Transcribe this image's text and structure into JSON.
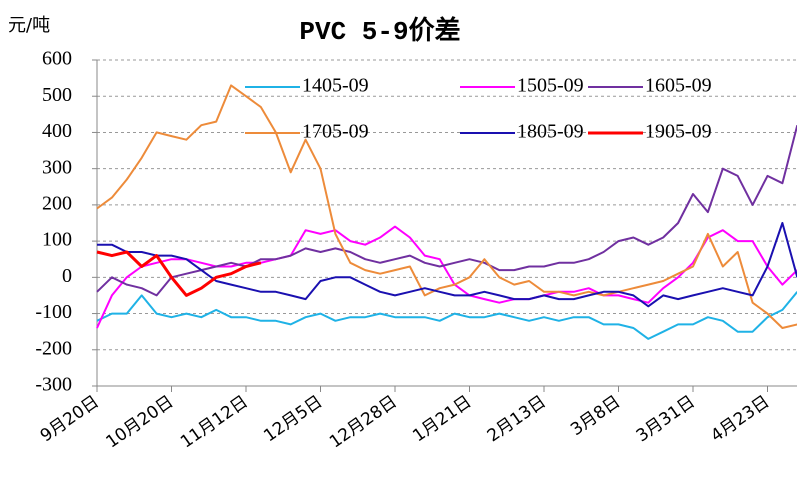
{
  "chart_data": {
    "type": "line",
    "title": "PVC 5-9价差",
    "y_label": "元/吨",
    "categories": [
      "9月20日",
      null,
      null,
      null,
      null,
      "10月20日",
      null,
      null,
      null,
      null,
      "11月12日",
      null,
      null,
      null,
      null,
      "12月5日",
      null,
      null,
      null,
      null,
      "12月28日",
      null,
      null,
      null,
      null,
      "1月21日",
      null,
      null,
      null,
      null,
      "2月13日",
      null,
      null,
      null,
      null,
      "3月8日",
      null,
      null,
      null,
      null,
      "3月31日",
      null,
      null,
      null,
      null,
      "4月23日",
      null,
      null
    ],
    "series": [
      {
        "name": "1405-09",
        "color": "#1fb2e6",
        "values": [
          -120,
          -100,
          -100,
          -50,
          -100,
          -110,
          -100,
          -110,
          -90,
          -110,
          -110,
          -120,
          -120,
          -130,
          -110,
          -100,
          -120,
          -110,
          -110,
          -100,
          -110,
          -110,
          -110,
          -120,
          -100,
          -110,
          -110,
          -100,
          -110,
          -120,
          -110,
          -120,
          -110,
          -110,
          -130,
          -130,
          -140,
          -170,
          -150,
          -130,
          -130,
          -110,
          -120,
          -150,
          -150,
          -110,
          -90,
          -40
        ]
      },
      {
        "name": "1505-09",
        "color": "#ff00ff",
        "values": [
          -140,
          -50,
          0,
          30,
          40,
          50,
          50,
          40,
          30,
          30,
          40,
          40,
          50,
          60,
          130,
          120,
          130,
          100,
          90,
          110,
          140,
          110,
          60,
          50,
          -20,
          -50,
          -60,
          -70,
          -60,
          -60,
          -50,
          -40,
          -40,
          -30,
          -50,
          -50,
          -60,
          -70,
          -30,
          0,
          40,
          110,
          130,
          100,
          100,
          30,
          -20,
          20
        ]
      },
      {
        "name": "1605-09",
        "color": "#7030a0",
        "values": [
          -40,
          0,
          -20,
          -30,
          -50,
          0,
          10,
          20,
          30,
          40,
          30,
          50,
          50,
          60,
          80,
          70,
          80,
          70,
          50,
          40,
          50,
          60,
          40,
          30,
          40,
          50,
          40,
          20,
          20,
          30,
          30,
          40,
          40,
          50,
          70,
          100,
          110,
          90,
          110,
          150,
          230,
          180,
          300,
          280,
          200,
          280,
          260,
          420
        ]
      },
      {
        "name": "1705-09",
        "color": "#ed8b3a",
        "values": [
          190,
          220,
          270,
          330,
          400,
          390,
          380,
          420,
          430,
          530,
          500,
          470,
          400,
          290,
          380,
          300,
          120,
          40,
          20,
          10,
          20,
          30,
          -50,
          -30,
          -20,
          0,
          50,
          0,
          -20,
          -10,
          -40,
          -40,
          -50,
          -40,
          -50,
          -40,
          -30,
          -20,
          -10,
          10,
          30,
          120,
          30,
          70,
          -70,
          -100,
          -140,
          -130
        ]
      },
      {
        "name": "1805-09",
        "color": "#1a10b0",
        "values": [
          90,
          90,
          70,
          70,
          60,
          60,
          50,
          20,
          -10,
          -20,
          -30,
          -40,
          -40,
          -50,
          -60,
          -10,
          0,
          0,
          -20,
          -40,
          -50,
          -40,
          -30,
          -40,
          -50,
          -50,
          -40,
          -50,
          -60,
          -60,
          -50,
          -60,
          -60,
          -50,
          -40,
          -40,
          -50,
          -80,
          -50,
          -60,
          -50,
          -40,
          -30,
          -40,
          -50,
          30,
          150,
          0
        ]
      },
      {
        "name": "1905-09",
        "color": "#ff0000",
        "values": [
          70,
          60,
          70,
          30,
          60,
          0,
          -50,
          -30,
          0,
          10,
          30,
          40,
          null,
          null,
          null,
          null,
          null,
          null,
          null,
          null,
          null,
          null,
          null,
          null,
          null,
          null,
          null,
          null,
          null,
          null,
          null,
          null,
          null,
          null,
          null,
          null,
          null,
          null,
          null,
          null,
          null,
          null,
          null,
          null,
          null,
          null,
          null,
          null
        ]
      }
    ],
    "ylim": [
      -300,
      600
    ],
    "yticks": [
      -300,
      -200,
      -100,
      0,
      100,
      200,
      300,
      400,
      500,
      600
    ],
    "grid": true
  }
}
